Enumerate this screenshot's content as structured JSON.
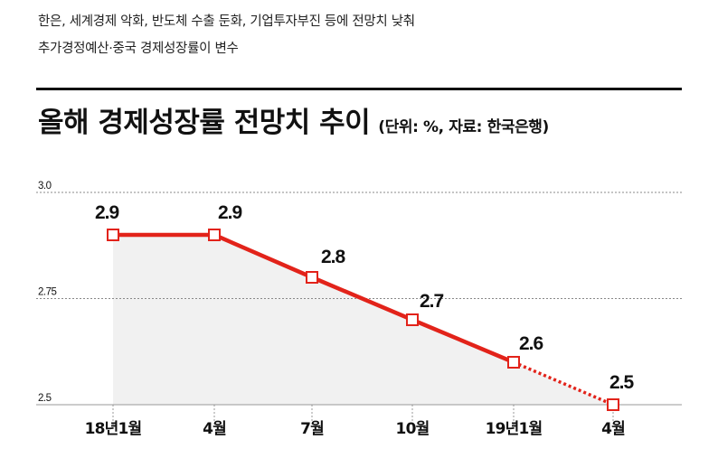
{
  "headlines": [
    "한은, 세계경제 악화, 반도체 수출 둔화, 기업투자부진 등에 전망치 낮춰",
    "추가경정예산·중국 경제성장률이 변수"
  ],
  "chart_data": {
    "type": "line",
    "title": "올해 경제성장률 전망치 추이",
    "subtitle": "(단위: %, 자료: 한국은행)",
    "categories": [
      "18년1월",
      "4월",
      "7월",
      "10월",
      "19년1월",
      "4월"
    ],
    "series": [
      {
        "values": [
          2.9,
          2.9,
          2.8,
          2.7,
          2.6,
          2.5
        ]
      }
    ],
    "value_labels": [
      "2.9",
      "2.9",
      "2.8",
      "2.7",
      "2.6",
      "2.5"
    ],
    "y_ticks": [
      "3.0",
      "2.75",
      "2.5"
    ],
    "y_tick_values": [
      3.0,
      2.75,
      2.5
    ],
    "ylim": [
      2.5,
      3.0
    ],
    "dotted_last_segment": true,
    "colors": {
      "line": "#e2231a",
      "fill": "#f1f1f1",
      "grid": "#888888",
      "marker_fill": "#ffffff"
    },
    "grid": true
  }
}
